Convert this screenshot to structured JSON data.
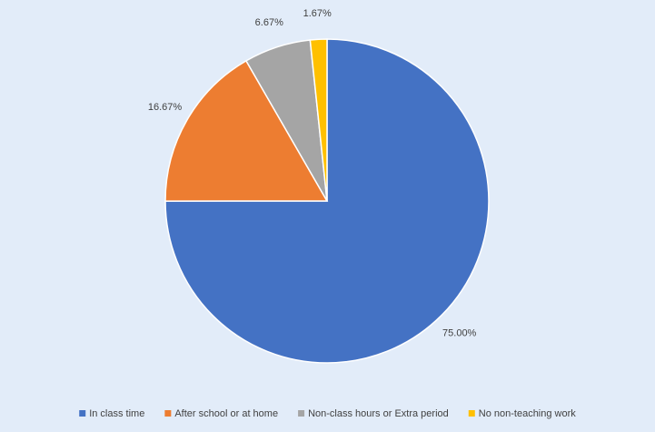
{
  "chart_data": {
    "type": "pie",
    "categories": [
      "In class time",
      "After school or at home",
      "Non-class hours or Extra period",
      "No non-teaching work"
    ],
    "values": [
      75,
      16.67,
      6.67,
      1.67
    ],
    "value_labels": [
      "75.00%",
      "16.67%",
      "6.67%",
      "1.67%"
    ],
    "colors": [
      "#4472c4",
      "#ed7d31",
      "#a5a5a5",
      "#ffc000"
    ],
    "legend": "bottom"
  }
}
